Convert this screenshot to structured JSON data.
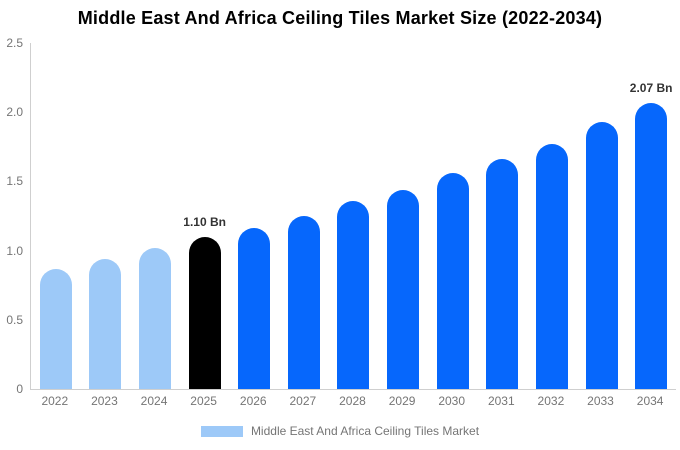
{
  "title": "Middle East And Africa Ceiling Tiles Market Size (2022-2034)",
  "legend": {
    "label": "Middle East And Africa Ceiling Tiles Market",
    "swatch_color": "#9dc9f8"
  },
  "colors": {
    "past_bar": "#9dc9f8",
    "forecast_bar": "#0667fc",
    "highlight_bar": "#000000",
    "axis_text": "#757575",
    "value_label_text": "#333333",
    "axis_line": "#cfcfcf",
    "title_text": "#000000"
  },
  "chart_data": {
    "type": "bar",
    "title": "Middle East And Africa Ceiling Tiles Market Size (2022-2034)",
    "categories": [
      "2022",
      "2023",
      "2024",
      "2025",
      "2026",
      "2027",
      "2028",
      "2029",
      "2030",
      "2031",
      "2032",
      "2033",
      "2034"
    ],
    "values": [
      0.87,
      0.94,
      1.02,
      1.1,
      1.16,
      1.25,
      1.36,
      1.44,
      1.56,
      1.66,
      1.77,
      1.93,
      2.07
    ],
    "unit": "Bn",
    "bar_colors": [
      "#9dc9f8",
      "#9dc9f8",
      "#9dc9f8",
      "#000000",
      "#0667fc",
      "#0667fc",
      "#0667fc",
      "#0667fc",
      "#0667fc",
      "#0667fc",
      "#0667fc",
      "#0667fc",
      "#0667fc"
    ],
    "point_labels": [
      "",
      "",
      "",
      "1.10 Bn",
      "",
      "",
      "",
      "",
      "",
      "",
      "",
      "",
      "2.07 Bn"
    ],
    "xlabel": "",
    "ylabel": "",
    "ylim": [
      0,
      2.5
    ],
    "yticks": [
      "2.5",
      "2.0",
      "1.5",
      "1.0",
      "0.5",
      "0"
    ],
    "grid": false,
    "legend_entries": [
      "Middle East And Africa Ceiling Tiles Market"
    ],
    "legend_position": "bottom"
  }
}
